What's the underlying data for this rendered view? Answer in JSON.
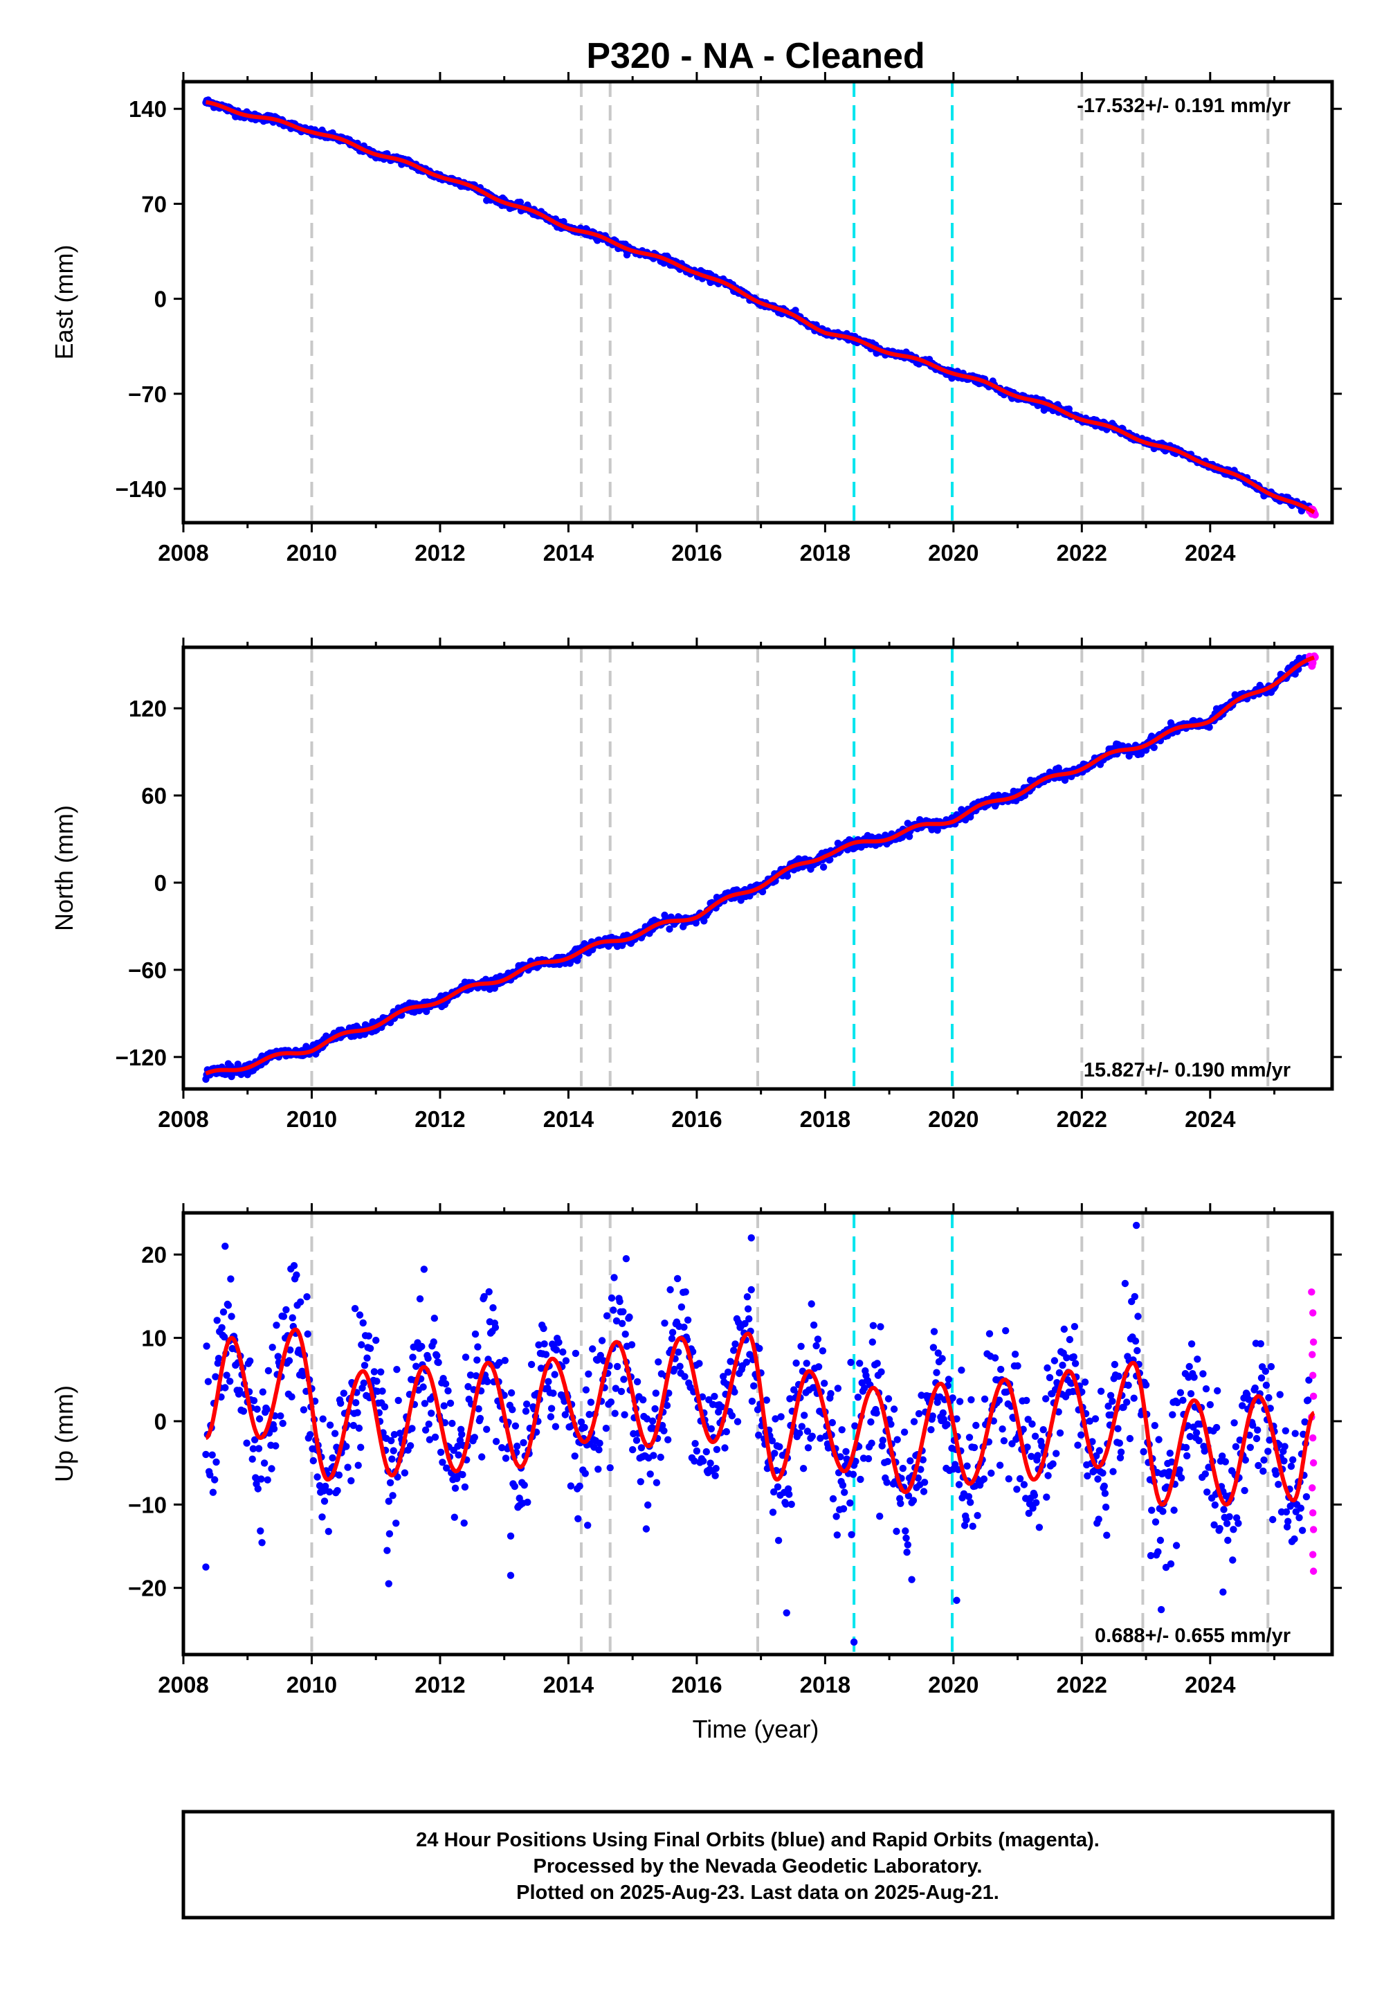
{
  "title": "P320  - NA - Cleaned",
  "xlabel": "Time (year)",
  "x_tick_labels": [
    "2008",
    "2010",
    "2012",
    "2014",
    "2016",
    "2018",
    "2020",
    "2022",
    "2024"
  ],
  "colors": {
    "final_orbits": "#0000ff",
    "rapid_orbits": "#ff00ff",
    "model_fit": "#ff0000",
    "gray_event": "#c8c8c8",
    "cyan_event": "#00e5ee"
  },
  "footer": {
    "line1": "24 Hour Positions Using Final Orbits (blue) and Rapid Orbits (magenta).",
    "line2": "Processed by the Nevada Geodetic Laboratory.",
    "line3": "Plotted on 2025-Aug-23. Last data on 2025-Aug-21."
  },
  "chart_data": [
    {
      "type": "scatter",
      "component": "East",
      "ylabel": "East (mm)",
      "ylim": [
        -165,
        160
      ],
      "xlim": [
        2008.0,
        2025.9
      ],
      "y_ticks": [
        140,
        70,
        0,
        -70,
        -140
      ],
      "y_tick_labels": [
        "140",
        "70",
        "0",
        "−70",
        "−140"
      ],
      "rate_label": "-17.532+/- 0.191 mm/yr",
      "rate_label_position": "top-right",
      "start": {
        "x": 2008.35,
        "y": 144
      },
      "velocity_mm_per_yr": -17.532,
      "trend_points": [
        {
          "x": 2008.35,
          "y": 144
        },
        {
          "x": 2010,
          "y": 124
        },
        {
          "x": 2012,
          "y": 91
        },
        {
          "x": 2014,
          "y": 53
        },
        {
          "x": 2016,
          "y": 20
        },
        {
          "x": 2018,
          "y": -24
        },
        {
          "x": 2020,
          "y": -54
        },
        {
          "x": 2022,
          "y": -88
        },
        {
          "x": 2024,
          "y": -122
        },
        {
          "x": 2025.62,
          "y": -158
        }
      ],
      "seasonal_amplitude_mm": 1.2,
      "scatter_mm": 1.3,
      "rapid_range": [
        2025.55,
        2025.64
      ],
      "grid": false
    },
    {
      "type": "scatter",
      "component": "North",
      "ylabel": "North (mm)",
      "ylim": [
        -142,
        162
      ],
      "xlim": [
        2008.0,
        2025.9
      ],
      "y_ticks": [
        120,
        60,
        0,
        -60,
        -120
      ],
      "y_tick_labels": [
        "120",
        "60",
        "0",
        "−60",
        "−120"
      ],
      "rate_label": "15.827+/- 0.190 mm/yr",
      "rate_label_position": "bottom-right",
      "start": {
        "x": 2008.35,
        "y": -133
      },
      "velocity_mm_per_yr": 15.827,
      "trend_points": [
        {
          "x": 2008.35,
          "y": -133
        },
        {
          "x": 2010,
          "y": -114
        },
        {
          "x": 2012,
          "y": -80
        },
        {
          "x": 2014,
          "y": -50
        },
        {
          "x": 2016,
          "y": -22
        },
        {
          "x": 2018,
          "y": 20
        },
        {
          "x": 2020,
          "y": 44
        },
        {
          "x": 2022,
          "y": 80
        },
        {
          "x": 2024,
          "y": 113
        },
        {
          "x": 2025.62,
          "y": 154
        }
      ],
      "seasonal_amplitude_mm": 2.0,
      "scatter_mm": 1.8,
      "rapid_range": [
        2025.55,
        2025.64
      ],
      "grid": false
    },
    {
      "type": "scatter",
      "component": "Up",
      "ylabel": "Up (mm)",
      "ylim": [
        -28,
        25
      ],
      "xlim": [
        2008.0,
        2025.9
      ],
      "y_ticks": [
        20,
        10,
        0,
        -10,
        -20
      ],
      "y_tick_labels": [
        "20",
        "10",
        "0",
        "−10",
        "−20"
      ],
      "rate_label": "0.688+/- 0.655 mm/yr",
      "rate_label_position": "bottom-right",
      "start": {
        "x": 2008.35,
        "y": 0
      },
      "velocity_mm_per_yr": 0.688,
      "trend_points": [
        {
          "x": 2008.35,
          "y": 0
        },
        {
          "x": 2025.62,
          "y": -1
        }
      ],
      "seasonal_amplitude_mm": 8.0,
      "seasonal_peaks": [
        {
          "x": 2008.75,
          "y": 10
        },
        {
          "x": 2009.75,
          "y": 11
        },
        {
          "x": 2010.8,
          "y": 6
        },
        {
          "x": 2011.75,
          "y": 6.5
        },
        {
          "x": 2012.75,
          "y": 7
        },
        {
          "x": 2013.75,
          "y": 7.5
        },
        {
          "x": 2014.75,
          "y": 9.5
        },
        {
          "x": 2015.75,
          "y": 10
        },
        {
          "x": 2016.8,
          "y": 10.5
        },
        {
          "x": 2017.75,
          "y": 6
        },
        {
          "x": 2018.75,
          "y": 4
        },
        {
          "x": 2019.8,
          "y": 4.5
        },
        {
          "x": 2020.8,
          "y": 5
        },
        {
          "x": 2021.8,
          "y": 6
        },
        {
          "x": 2022.8,
          "y": 7
        },
        {
          "x": 2023.75,
          "y": 2.5
        },
        {
          "x": 2024.75,
          "y": 3
        }
      ],
      "seasonal_troughs": [
        {
          "x": 2008.35,
          "y": -2
        },
        {
          "x": 2009.2,
          "y": -2
        },
        {
          "x": 2010.25,
          "y": -7
        },
        {
          "x": 2011.25,
          "y": -6.5
        },
        {
          "x": 2012.25,
          "y": -6
        },
        {
          "x": 2013.25,
          "y": -5.5
        },
        {
          "x": 2014.25,
          "y": -2.5
        },
        {
          "x": 2015.25,
          "y": -3
        },
        {
          "x": 2016.25,
          "y": -2.5
        },
        {
          "x": 2017.25,
          "y": -7
        },
        {
          "x": 2018.3,
          "y": -6
        },
        {
          "x": 2019.25,
          "y": -8.5
        },
        {
          "x": 2020.25,
          "y": -7.5
        },
        {
          "x": 2021.25,
          "y": -7
        },
        {
          "x": 2022.25,
          "y": -5.5
        },
        {
          "x": 2023.25,
          "y": -10
        },
        {
          "x": 2024.25,
          "y": -10
        },
        {
          "x": 2025.3,
          "y": -9.5
        },
        {
          "x": 2025.62,
          "y": 1
        }
      ],
      "scatter_mm": 4.2,
      "rapid_points": [
        {
          "x": 2025.58,
          "y": 15.5
        },
        {
          "x": 2025.6,
          "y": 13
        },
        {
          "x": 2025.61,
          "y": 9.5
        },
        {
          "x": 2025.59,
          "y": 8
        },
        {
          "x": 2025.6,
          "y": 5.5
        },
        {
          "x": 2025.61,
          "y": 3
        },
        {
          "x": 2025.58,
          "y": 0.5
        },
        {
          "x": 2025.6,
          "y": -2
        },
        {
          "x": 2025.61,
          "y": -5
        },
        {
          "x": 2025.59,
          "y": -8
        },
        {
          "x": 2025.6,
          "y": -11
        },
        {
          "x": 2025.61,
          "y": -13
        },
        {
          "x": 2025.6,
          "y": -16
        },
        {
          "x": 2025.61,
          "y": -18
        }
      ],
      "outliers": [
        {
          "x": 2008.35,
          "y": -17.5
        },
        {
          "x": 2018.45,
          "y": -26.5
        },
        {
          "x": 2022.85,
          "y": 23.5
        },
        {
          "x": 2016.85,
          "y": 22
        },
        {
          "x": 2008.65,
          "y": 21
        },
        {
          "x": 2014.9,
          "y": 19.5
        },
        {
          "x": 2017.4,
          "y": -23
        },
        {
          "x": 2020.05,
          "y": -21.5
        },
        {
          "x": 2024.2,
          "y": -20.5
        },
        {
          "x": 2013.1,
          "y": -18.5
        },
        {
          "x": 2011.2,
          "y": -19.5
        },
        {
          "x": 2019.35,
          "y": -19
        }
      ],
      "grid": false
    }
  ],
  "event_lines": {
    "gray": [
      2010.0,
      2014.2,
      2014.65,
      2016.95,
      2022.0,
      2022.95,
      2024.9
    ],
    "cyan": [
      2018.45,
      2019.98
    ]
  }
}
